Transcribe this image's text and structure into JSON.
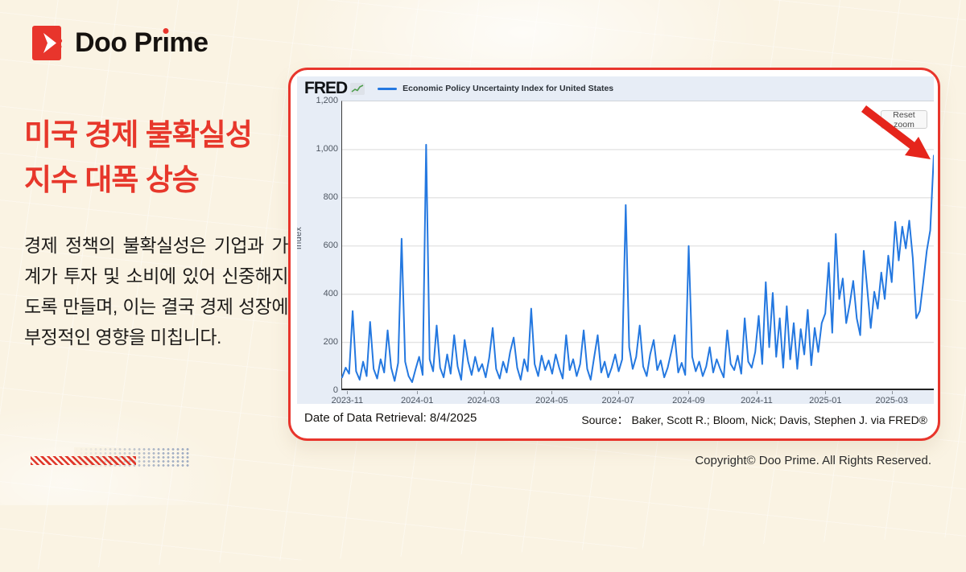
{
  "logo": {
    "brand_part1": "Doo Pr",
    "brand_dotless_i": "ı",
    "brand_part2": "me",
    "brand_full": "Doo Prime",
    "brand_red": "#e8352c"
  },
  "headline": {
    "line1": "미국 경제 불확실성",
    "line2": "지수 대폭 상승",
    "color": "#e7372b"
  },
  "body_text": "경제 정책의 불확실성은 기업과 가계가 투자 및 소비에 있어 신중해지도록 만들며, 이는 결국 경제 성장에 부정적인 영향을 미칩니다.",
  "card": {
    "border_color": "#e8352c",
    "footer_left": "Date of Data Retrieval: 8/4/2025",
    "footer_right": "Source： Baker, Scott R.; Bloom, Nick; Davis, Stephen J. via FRED®"
  },
  "fred": {
    "wordmark": "FRED",
    "spark_icon": "fred-sparkline-icon",
    "legend_label": "Economic Policy Uncertainty Index for United States",
    "reset_button": "Reset zoom",
    "line_color": "#2478e0",
    "panel_bg": "#e7edf6",
    "arrow_color": "#e5251c"
  },
  "chart_data": {
    "type": "line",
    "title": "Economic Policy Uncertainty Index for United States",
    "xlabel": "",
    "ylabel": "Index",
    "ylim": [
      0,
      1200
    ],
    "grid": "horizontal",
    "legend_position": "top-left",
    "yticks": [
      "1,200",
      "1,000",
      "800",
      "600",
      "400",
      "200",
      "0"
    ],
    "x_ticks": [
      {
        "label": "2023-11",
        "pos": 0.01
      },
      {
        "label": "2024-01",
        "pos": 0.128
      },
      {
        "label": "2024-03",
        "pos": 0.24
      },
      {
        "label": "2024-05",
        "pos": 0.355
      },
      {
        "label": "2024-07",
        "pos": 0.467
      },
      {
        "label": "2024-09",
        "pos": 0.586
      },
      {
        "label": "2024-11",
        "pos": 0.701
      },
      {
        "label": "2025-01",
        "pos": 0.817
      },
      {
        "label": "2025-03",
        "pos": 0.929
      }
    ],
    "x_range_note": "daily values, approx 2023-10 through 2025-04",
    "series": [
      {
        "name": "Economic Policy Uncertainty Index for United States",
        "values": [
          55,
          95,
          70,
          330,
          80,
          45,
          120,
          60,
          285,
          90,
          50,
          130,
          75,
          250,
          95,
          40,
          115,
          630,
          120,
          60,
          35,
          90,
          140,
          65,
          1020,
          130,
          80,
          270,
          95,
          55,
          150,
          70,
          230,
          100,
          45,
          210,
          120,
          65,
          140,
          80,
          110,
          55,
          135,
          260,
          90,
          50,
          120,
          75,
          160,
          220,
          95,
          45,
          130,
          80,
          340,
          110,
          60,
          145,
          85,
          125,
          70,
          150,
          95,
          50,
          230,
          85,
          130,
          60,
          110,
          250,
          90,
          45,
          140,
          230,
          75,
          120,
          55,
          95,
          150,
          80,
          130,
          770,
          180,
          90,
          140,
          270,
          100,
          60,
          150,
          210,
          85,
          125,
          55,
          95,
          160,
          230,
          75,
          115,
          65,
          600,
          140,
          80,
          120,
          60,
          100,
          180,
          75,
          130,
          90,
          55,
          250,
          110,
          85,
          145,
          70,
          300,
          120,
          95,
          160,
          310,
          110,
          450,
          180,
          405,
          140,
          300,
          95,
          350,
          130,
          280,
          90,
          255,
          150,
          335,
          105,
          260,
          160,
          280,
          320,
          530,
          240,
          650,
          380,
          465,
          280,
          360,
          455,
          300,
          230,
          580,
          420,
          260,
          410,
          340,
          490,
          380,
          560,
          450,
          700,
          540,
          680,
          590,
          705,
          550,
          300,
          330,
          450,
          580,
          665,
          975
        ]
      }
    ]
  },
  "footer": {
    "copyright": "Copyright© Doo Prime. All Rights Reserved."
  }
}
